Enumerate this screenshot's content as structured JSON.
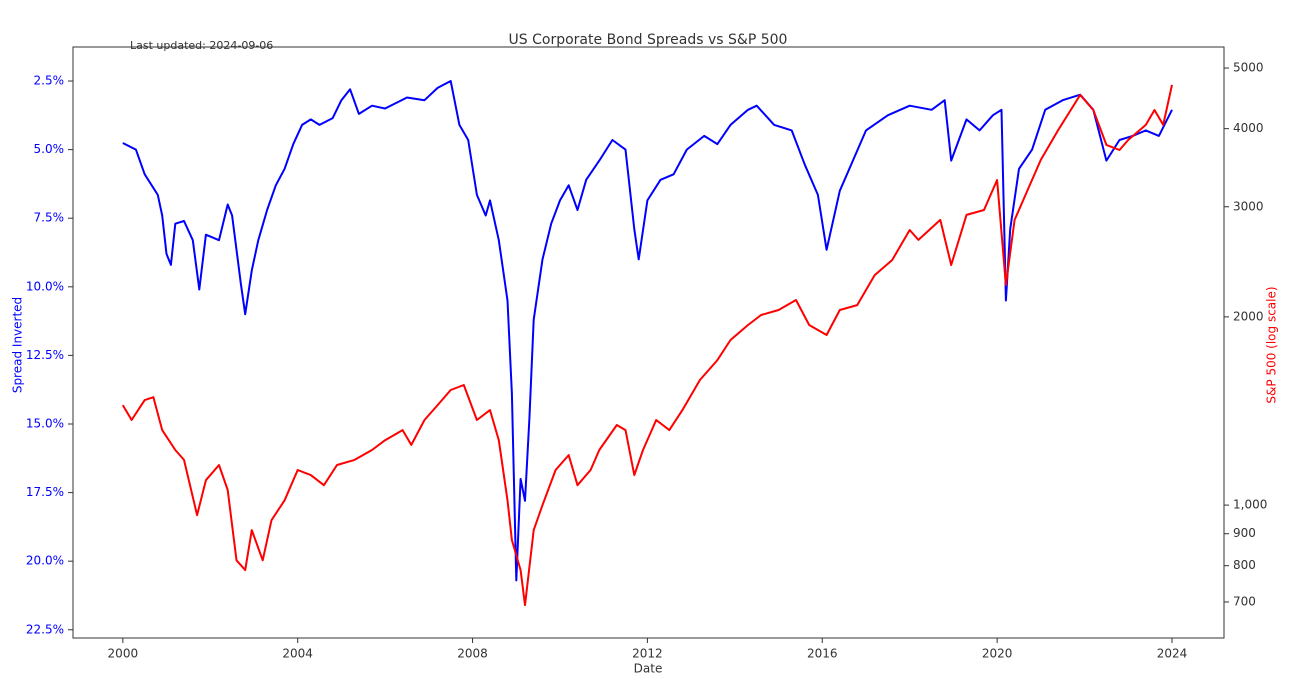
{
  "chart_data": {
    "type": "line",
    "title": "US Corporate Bond Spreads vs S&P 500",
    "subtitle": "Last updated: 2024-09-06",
    "xlabel": "Date",
    "ylabel": "Spread Inverted",
    "y2label": "S&P 500 (log scale)",
    "xlim": [
      1998.86,
      2025.19
    ],
    "xticks": [
      2000,
      2004,
      2008,
      2012,
      2016,
      2020,
      2024
    ],
    "ylim": [
      22.8,
      1.26
    ],
    "y_inverted": true,
    "yticks": [
      {
        "value": 2.5,
        "label": "2.5%"
      },
      {
        "value": 5,
        "label": "5.0%"
      },
      {
        "value": 7.5,
        "label": "7.5%"
      },
      {
        "value": 10,
        "label": "10.0%"
      },
      {
        "value": 12.5,
        "label": "12.5%"
      },
      {
        "value": 15,
        "label": "15.0%"
      },
      {
        "value": 17.5,
        "label": "17.5%"
      },
      {
        "value": 20,
        "label": "20.0%"
      },
      {
        "value": 22.5,
        "label": "22.5%"
      }
    ],
    "y2lim": [
      613,
      5403
    ],
    "y2log": true,
    "y2ticks": [
      5000,
      4000,
      3000,
      2000,
      {
        "value": 1000,
        "label": "1,000"
      },
      900,
      800,
      700
    ],
    "series": [
      {
        "name": "Spread Inverted",
        "color": "#0000ff",
        "axis": "y",
        "x": [
          2000.0,
          2000.3,
          2000.5,
          2000.8,
          2000.9,
          2001.0,
          2001.1,
          2001.2,
          2001.4,
          2001.6,
          2001.75,
          2001.9,
          2002.2,
          2002.4,
          2002.5,
          2002.7,
          2002.8,
          2002.95,
          2003.1,
          2003.3,
          2003.5,
          2003.7,
          2003.9,
          2004.1,
          2004.3,
          2004.5,
          2004.8,
          2005.0,
          2005.2,
          2005.4,
          2005.7,
          2006.0,
          2006.5,
          2006.9,
          2007.2,
          2007.5,
          2007.7,
          2007.9,
          2008.1,
          2008.3,
          2008.4,
          2008.6,
          2008.8,
          2008.9,
          2009.0,
          2009.1,
          2009.2,
          2009.3,
          2009.4,
          2009.6,
          2009.8,
          2010.0,
          2010.2,
          2010.4,
          2010.6,
          2010.9,
          2011.2,
          2011.5,
          2011.7,
          2011.8,
          2012.0,
          2012.3,
          2012.6,
          2012.9,
          2013.3,
          2013.6,
          2013.9,
          2014.3,
          2014.5,
          2014.9,
          2015.3,
          2015.6,
          2015.9,
          2016.1,
          2016.4,
          2016.7,
          2017.0,
          2017.5,
          2018.0,
          2018.5,
          2018.8,
          2018.95,
          2019.3,
          2019.6,
          2019.9,
          2020.1,
          2020.2,
          2020.3,
          2020.5,
          2020.8,
          2021.1,
          2021.5,
          2021.9,
          2022.2,
          2022.5,
          2022.8,
          2023.1,
          2023.4,
          2023.7,
          2024.0
        ],
        "values": [
          4.76,
          5.0,
          5.9,
          6.65,
          7.4,
          8.8,
          9.2,
          7.7,
          7.6,
          8.3,
          10.1,
          8.1,
          8.3,
          7.0,
          7.4,
          9.9,
          11.0,
          9.4,
          8.3,
          7.2,
          6.3,
          5.7,
          4.8,
          4.1,
          3.9,
          4.1,
          3.85,
          3.2,
          2.8,
          3.7,
          3.4,
          3.5,
          3.1,
          3.2,
          2.75,
          2.5,
          4.1,
          4.65,
          6.65,
          7.4,
          6.85,
          8.3,
          10.5,
          13.9,
          20.7,
          17.0,
          17.8,
          14.8,
          11.2,
          9.0,
          7.7,
          6.85,
          6.3,
          7.2,
          6.1,
          5.4,
          4.65,
          5.0,
          7.9,
          9.0,
          6.85,
          6.1,
          5.9,
          5.0,
          4.5,
          4.8,
          4.1,
          3.55,
          3.4,
          4.1,
          4.3,
          5.55,
          6.65,
          8.65,
          6.5,
          5.4,
          4.3,
          3.75,
          3.4,
          3.55,
          3.2,
          5.4,
          3.9,
          4.3,
          3.75,
          3.55,
          10.5,
          7.9,
          5.7,
          5.0,
          3.55,
          3.2,
          3.0,
          3.55,
          5.4,
          4.65,
          4.5,
          4.3,
          4.5,
          3.55
        ]
      },
      {
        "name": "S&P 500",
        "color": "#ff0000",
        "axis": "y2",
        "x": [
          2000.0,
          2000.2,
          2000.5,
          2000.7,
          2000.9,
          2001.2,
          2001.4,
          2001.7,
          2001.9,
          2002.2,
          2002.4,
          2002.6,
          2002.8,
          2002.95,
          2003.2,
          2003.4,
          2003.7,
          2004.0,
          2004.3,
          2004.6,
          2004.9,
          2005.3,
          2005.7,
          2006.0,
          2006.4,
          2006.6,
          2006.9,
          2007.2,
          2007.5,
          2007.8,
          2008.1,
          2008.4,
          2008.6,
          2008.8,
          2008.9,
          2009.1,
          2009.2,
          2009.4,
          2009.6,
          2009.9,
          2010.2,
          2010.4,
          2010.7,
          2010.9,
          2011.3,
          2011.5,
          2011.7,
          2011.9,
          2012.2,
          2012.5,
          2012.8,
          2013.2,
          2013.6,
          2013.9,
          2014.3,
          2014.6,
          2015.0,
          2015.4,
          2015.7,
          2016.1,
          2016.4,
          2016.8,
          2017.2,
          2017.6,
          2018.0,
          2018.2,
          2018.7,
          2018.95,
          2019.3,
          2019.7,
          2020.0,
          2020.2,
          2020.4,
          2020.7,
          2021.0,
          2021.4,
          2021.9,
          2022.2,
          2022.5,
          2022.8,
          2023.0,
          2023.4,
          2023.6,
          2023.8,
          2024.0
        ],
        "values": [
          1445,
          1368,
          1472,
          1488,
          1318,
          1225,
          1181,
          964,
          1096,
          1159,
          1057,
          816,
          787,
          912,
          816,
          946,
          1018,
          1138,
          1117,
          1076,
          1159,
          1181,
          1225,
          1270,
          1318,
          1248,
          1368,
          1445,
          1528,
          1556,
          1368,
          1419,
          1270,
          1018,
          879,
          787,
          692,
          912,
          1000,
          1138,
          1202,
          1076,
          1138,
          1225,
          1343,
          1318,
          1117,
          1225,
          1368,
          1318,
          1419,
          1585,
          1706,
          1837,
          1941,
          2014,
          2051,
          2128,
          1941,
          1871,
          2051,
          2089,
          2333,
          2466,
          2754,
          2655,
          2858,
          2421,
          2911,
          2965,
          3311,
          2249,
          2858,
          3192,
          3565,
          3981,
          4529,
          4285,
          3767,
          3698,
          3837,
          4055,
          4285,
          4055,
          4699
        ]
      }
    ]
  }
}
